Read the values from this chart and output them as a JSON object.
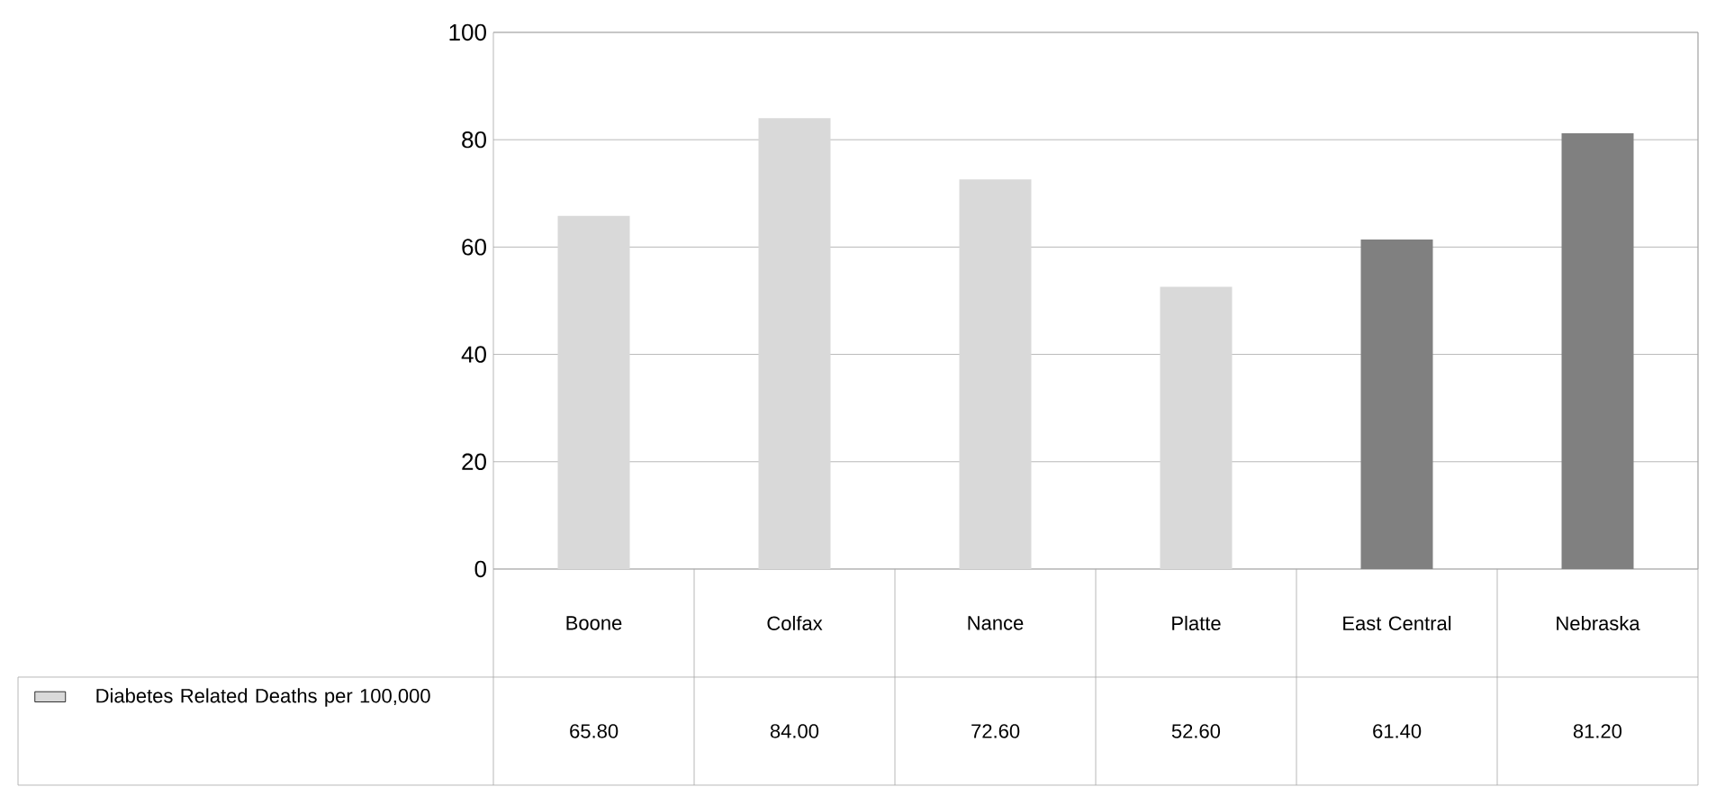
{
  "chart_data": {
    "type": "bar",
    "categories": [
      "Boone",
      "Colfax",
      "Nance",
      "Platte",
      "East Central",
      "Nebraska"
    ],
    "series": [
      {
        "name": "Diabetes Related Deaths per 100,000",
        "colors": [
          "#d9d9d9",
          "#d9d9d9",
          "#d9d9d9",
          "#d9d9d9",
          "#808080",
          "#808080"
        ],
        "values": [
          65.8,
          84.0,
          72.6,
          52.6,
          61.4,
          81.2
        ],
        "value_labels": [
          "65.80",
          "84.00",
          "72.60",
          "52.60",
          "61.40",
          "81.20"
        ]
      }
    ],
    "ylim": [
      0,
      100
    ],
    "yticks": [
      0,
      20,
      40,
      60,
      80,
      100
    ],
    "grid": "y",
    "legend": "bottom left"
  }
}
